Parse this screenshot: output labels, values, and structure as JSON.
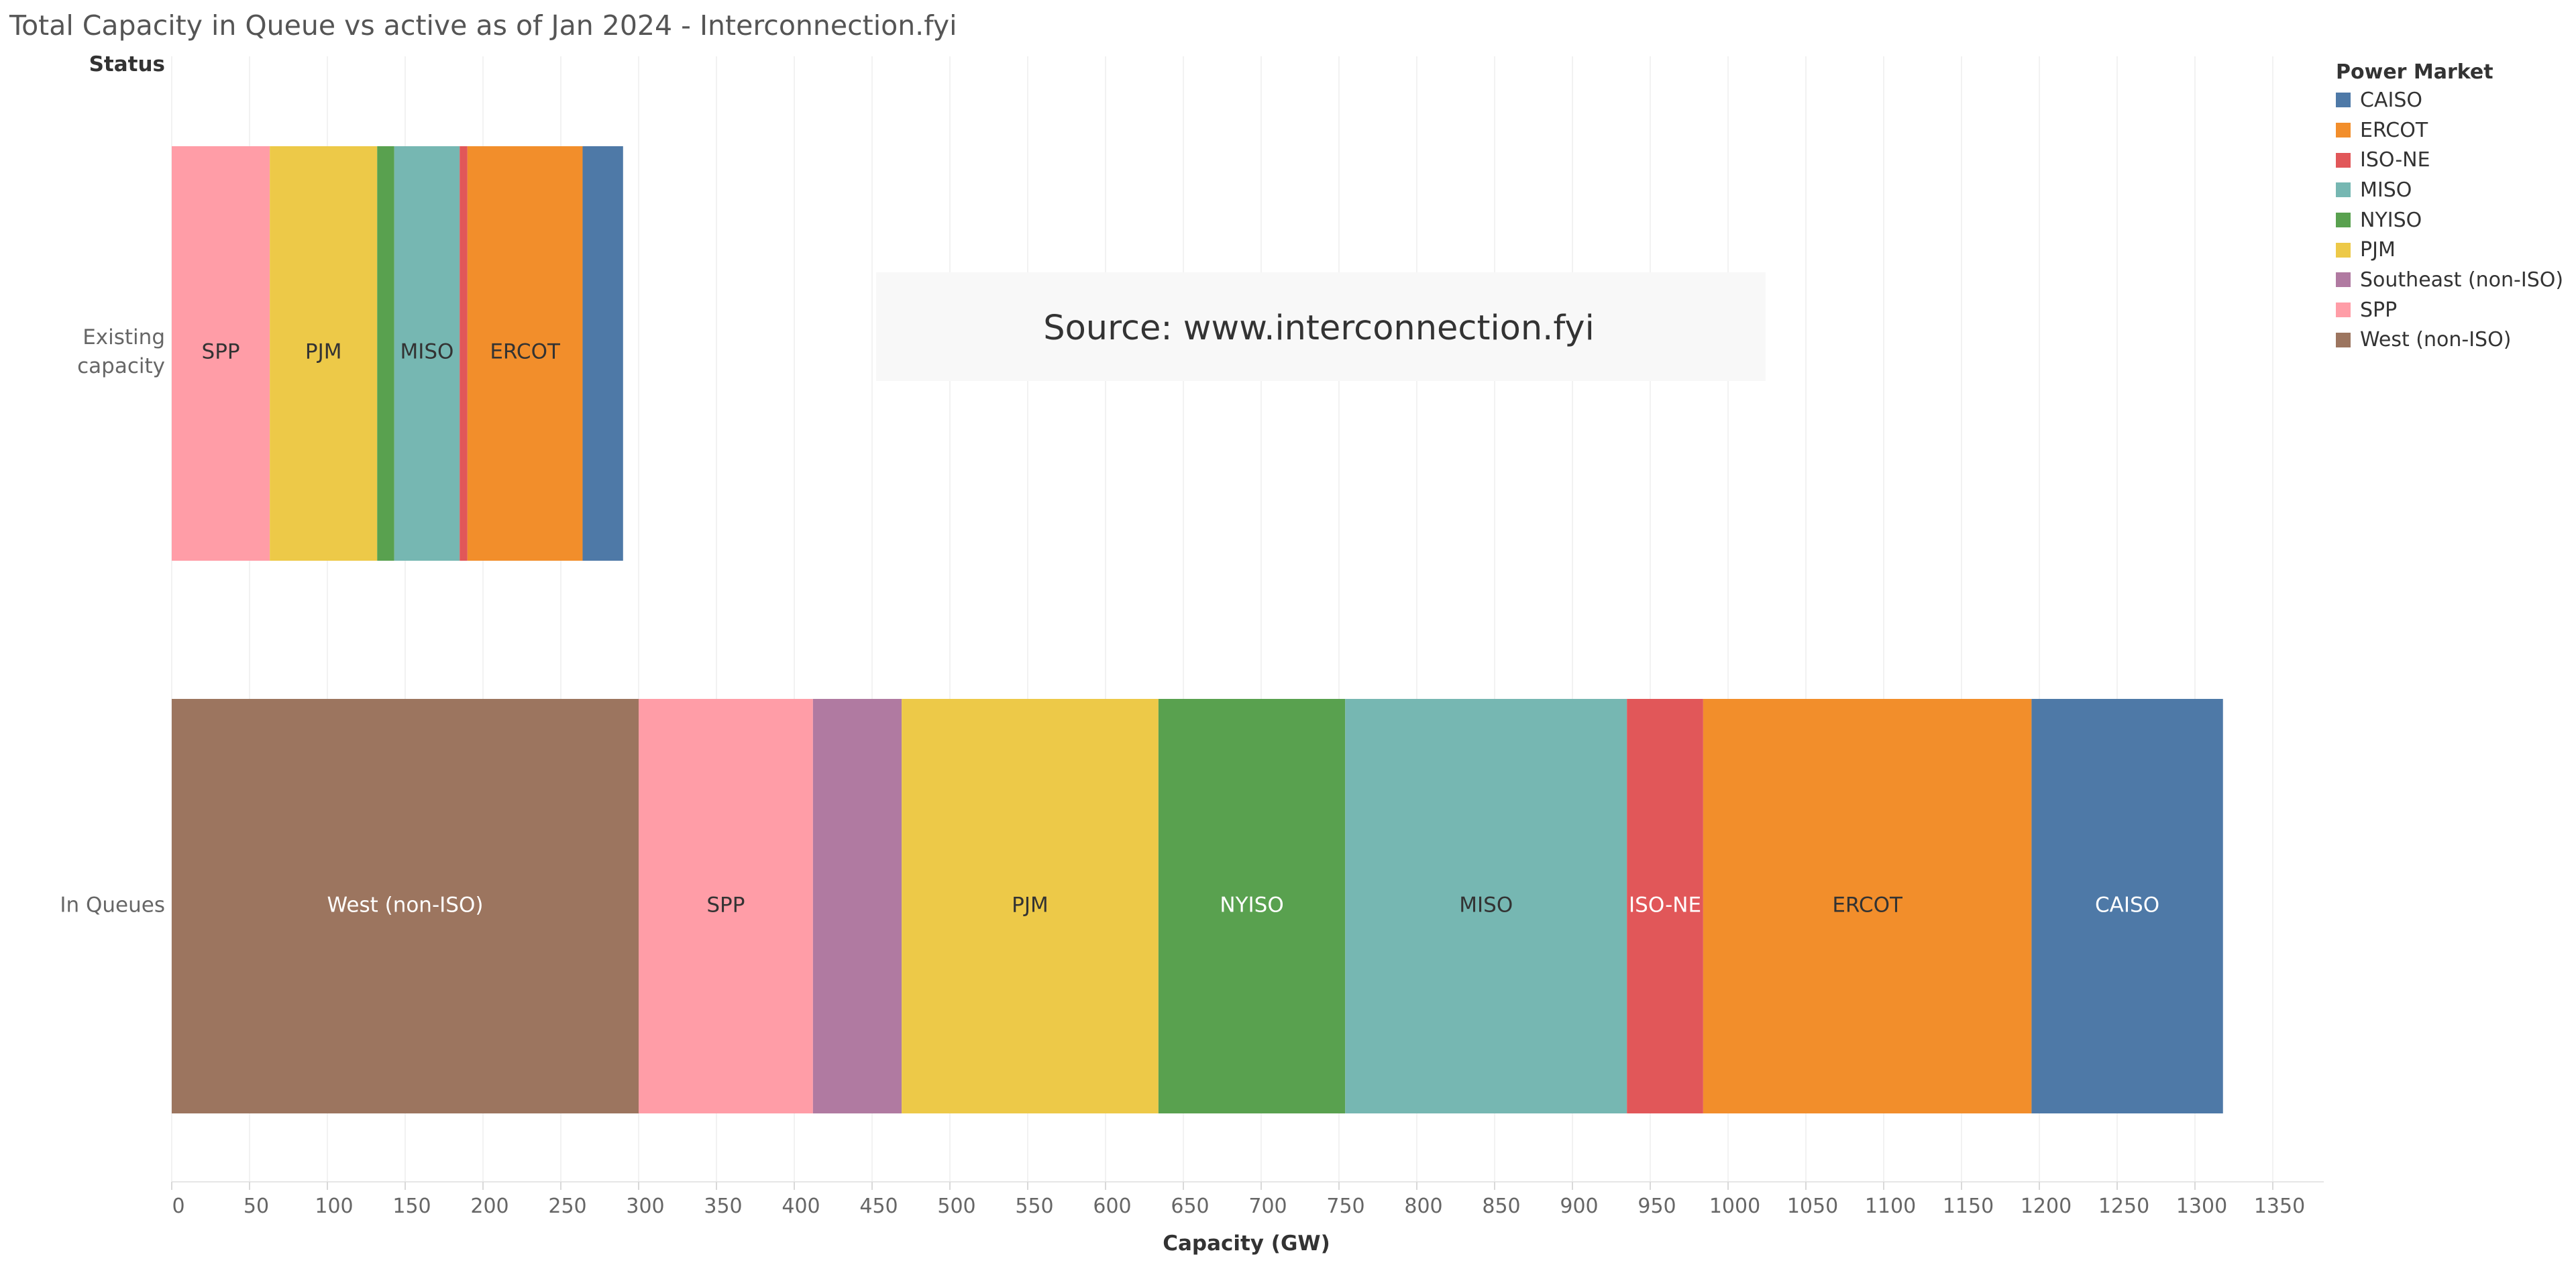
{
  "title": "Total Capacity in Queue vs active as of Jan 2024 - Interconnection.fyi",
  "source_note": "Source: www.interconnection.fyi",
  "row_header": "Status",
  "colors": {
    "CAISO": "#4e79a7",
    "ERCOT": "#f28e2b",
    "ISO-NE": "#e15759",
    "MISO": "#76b7b2",
    "NYISO": "#59a14f",
    "PJM": "#edc948",
    "Southeast (non-ISO)": "#b07aa1",
    "SPP": "#ff9da7",
    "West (non-ISO)": "#9c755f"
  },
  "legend": {
    "title": "Power Market",
    "items": [
      "CAISO",
      "ERCOT",
      "ISO-NE",
      "MISO",
      "NYISO",
      "PJM",
      "Southeast (non-ISO)",
      "SPP",
      "West (non-ISO)"
    ]
  },
  "chart_data": {
    "type": "bar",
    "orientation": "horizontal",
    "stacked": true,
    "title": "Total Capacity in Queue vs active as of Jan 2024 - Interconnection.fyi",
    "xlabel": "Capacity (GW)",
    "ylabel": "Status",
    "xlim": [
      0,
      1380
    ],
    "xticks": [
      0,
      50,
      100,
      150,
      200,
      250,
      300,
      350,
      400,
      450,
      500,
      550,
      600,
      650,
      700,
      750,
      800,
      850,
      900,
      950,
      1000,
      1050,
      1100,
      1150,
      1200,
      1250,
      1300,
      1350
    ],
    "grid": "vertical",
    "legend_position": "right",
    "categories": [
      {
        "line1": "Existing",
        "line2": "capacity",
        "segments": [
          {
            "market": "SPP",
            "value": 63,
            "label": "SPP"
          },
          {
            "market": "PJM",
            "value": 69,
            "label": "PJM"
          },
          {
            "market": "NYISO",
            "value": 11,
            "label": ""
          },
          {
            "market": "MISO",
            "value": 42,
            "label": "MISO"
          },
          {
            "market": "ISO-NE",
            "value": 5,
            "label": ""
          },
          {
            "market": "ERCOT",
            "value": 74,
            "label": "ERCOT"
          },
          {
            "market": "CAISO",
            "value": 26,
            "label": ""
          }
        ]
      },
      {
        "line1": "In Queues",
        "line2": "",
        "segments": [
          {
            "market": "West (non-ISO)",
            "value": 300,
            "label": "West (non-ISO)"
          },
          {
            "market": "SPP",
            "value": 112,
            "label": "SPP"
          },
          {
            "market": "Southeast (non-ISO)",
            "value": 57,
            "label": ""
          },
          {
            "market": "PJM",
            "value": 165,
            "label": "PJM"
          },
          {
            "market": "NYISO",
            "value": 120,
            "label": "NYISO"
          },
          {
            "market": "MISO",
            "value": 181,
            "label": "MISO"
          },
          {
            "market": "ISO-NE",
            "value": 49,
            "label": "ISO-NE"
          },
          {
            "market": "ERCOT",
            "value": 211,
            "label": "ERCOT"
          },
          {
            "market": "CAISO",
            "value": 123,
            "label": "CAISO"
          }
        ]
      }
    ]
  }
}
